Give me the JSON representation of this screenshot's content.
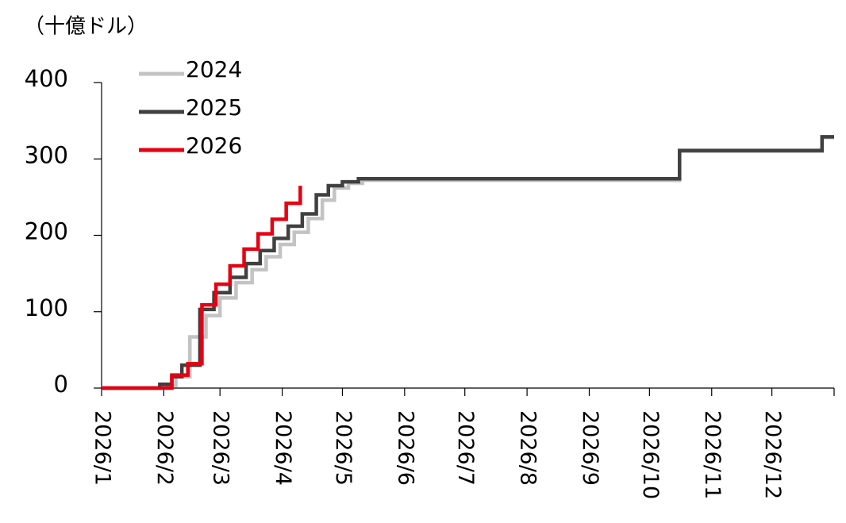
{
  "chart_data": {
    "type": "line",
    "step": true,
    "y_label": "（十億ドル）",
    "xlim": [
      0,
      365
    ],
    "ylim": [
      0,
      400
    ],
    "yticks": [
      0,
      100,
      200,
      300,
      400
    ],
    "xticks": [
      {
        "value": 0,
        "label": "2026/1"
      },
      {
        "value": 31,
        "label": "2026/2"
      },
      {
        "value": 59,
        "label": "2026/3"
      },
      {
        "value": 90,
        "label": "2026/4"
      },
      {
        "value": 120,
        "label": "2026/5"
      },
      {
        "value": 151,
        "label": "2026/6"
      },
      {
        "value": 181,
        "label": "2026/7"
      },
      {
        "value": 212,
        "label": "2026/8"
      },
      {
        "value": 243,
        "label": "2026/9"
      },
      {
        "value": 273,
        "label": "2026/10"
      },
      {
        "value": 304,
        "label": "2026/11"
      },
      {
        "value": 334,
        "label": "2026/12"
      },
      365
    ],
    "legend": "top-left",
    "series": [
      {
        "name": "2024",
        "color": "#c3c3c3",
        "x": [
          0,
          33,
          37,
          44,
          52,
          59,
          67,
          75,
          82,
          89,
          96,
          103,
          110,
          116,
          123,
          130,
          288,
          359,
          365
        ],
        "values": [
          0,
          3,
          15,
          67,
          95,
          118,
          138,
          155,
          172,
          188,
          204,
          222,
          246,
          262,
          268,
          272,
          310,
          328,
          328
        ]
      },
      {
        "name": "2025",
        "color": "#404040",
        "x": [
          0,
          29,
          35,
          40,
          49,
          56,
          64,
          72,
          79,
          86,
          93,
          100,
          107,
          113,
          120,
          128,
          288,
          359,
          365
        ],
        "values": [
          0,
          5,
          15,
          30,
          103,
          125,
          145,
          163,
          180,
          196,
          212,
          228,
          253,
          265,
          270,
          274,
          311,
          329,
          329
        ]
      },
      {
        "name": "2026",
        "color": "#e60012",
        "x": [
          0,
          35,
          43,
          50,
          57,
          64,
          71,
          78,
          85,
          92,
          99
        ],
        "values": [
          0,
          17,
          32,
          109,
          136,
          160,
          182,
          202,
          221,
          242,
          265
        ]
      }
    ]
  }
}
